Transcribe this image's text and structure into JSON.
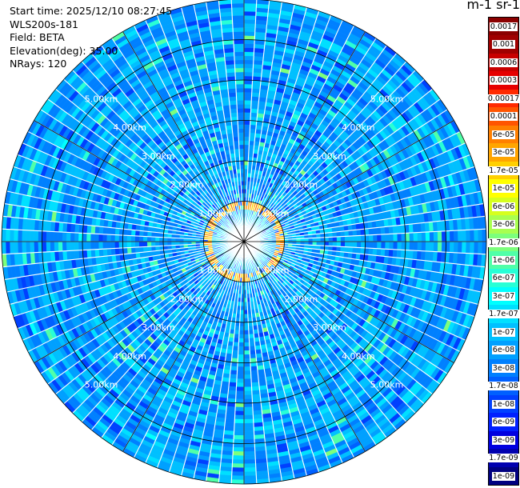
{
  "header": {
    "start_time": "Start time: 2025/12/10 08:27:45",
    "instrument": "WLS200s-181",
    "field": "Field: BETA",
    "elevation": "Elevation(deg): 35.00",
    "nrays": "NRays: 120"
  },
  "colorbar": {
    "title": "m-1 sr-1",
    "ticks": [
      "0.0017",
      "0.001",
      "0.0006",
      "0.0003",
      "0.00017",
      "0.0001",
      "6e-05",
      "3e-05",
      "1.7e-05",
      "1e-05",
      "6e-06",
      "3e-06",
      "1.7e-06",
      "1e-06",
      "6e-07",
      "3e-07",
      "1.7e-07",
      "1e-07",
      "6e-08",
      "3e-08",
      "1.7e-08",
      "1e-08",
      "6e-09",
      "3e-09",
      "1.7e-09",
      "1e-09"
    ],
    "colors": [
      "#8b0000",
      "#a00000",
      "#c80000",
      "#e60000",
      "#ff2a00",
      "#ff5500",
      "#ff8000",
      "#ffa500",
      "#ffd000",
      "#ffff00",
      "#d6ff1e",
      "#a8ff50",
      "#7cff7c",
      "#50ffa8",
      "#28ffd6",
      "#00ffff",
      "#00e0ff",
      "#00c0ff",
      "#00a0ff",
      "#0080ff",
      "#0060ff",
      "#0040ff",
      "#0020ff",
      "#0000e0",
      "#0000b0",
      "#000080"
    ]
  },
  "chart_data": {
    "type": "heatmap",
    "projection": "polar PPI",
    "field": "BETA",
    "n_rays": 120,
    "elevation_deg": 35.0,
    "rings_km": [
      1,
      2,
      3,
      4,
      5,
      6
    ],
    "ring_labels": [
      "1.00km",
      "2.00km",
      "3.00km",
      "4.00km",
      "5.00km"
    ],
    "max_range_km": 6.0,
    "color_scale": "log",
    "value_range": [
      1e-09,
      0.0017
    ],
    "background_value": 6e-08,
    "features": [
      {
        "description": "ring of enhanced backscatter",
        "range_km": [
          0.8,
          1.0
        ],
        "value": 3e-05
      },
      {
        "description": "near-field return",
        "range_km": [
          0.0,
          0.75
        ],
        "value": 1e-07
      }
    ]
  }
}
